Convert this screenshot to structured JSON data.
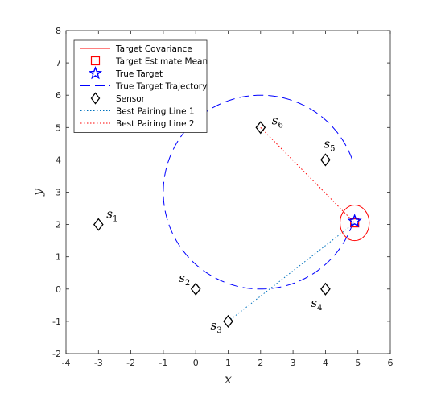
{
  "chart_data": {
    "type": "scatter",
    "title": "",
    "xlabel": "x",
    "ylabel": "y",
    "xlim": [
      -4,
      6
    ],
    "ylim": [
      -2,
      8
    ],
    "xticks": [
      -4,
      -3,
      -2,
      -1,
      0,
      1,
      2,
      3,
      4,
      5,
      6
    ],
    "yticks": [
      -2,
      -1,
      0,
      1,
      2,
      3,
      4,
      5,
      6,
      7,
      8
    ],
    "grid": false,
    "legend_position": "top-left",
    "legend": [
      {
        "label": "Target Covariance",
        "style": "red-solid-line"
      },
      {
        "label": "Target Estimate Mean",
        "style": "red-square"
      },
      {
        "label": "True Target",
        "style": "blue-star"
      },
      {
        "label": "True Target Trajectory",
        "style": "blue-dashed-line"
      },
      {
        "label": "Sensor",
        "style": "black-diamond"
      },
      {
        "label": "Best Pairing Line 1",
        "style": "blue-dotted-line"
      },
      {
        "label": "Best Pairing Line 2",
        "style": "red-dotted-line"
      }
    ],
    "sensors": [
      {
        "name": "s",
        "sub": "1",
        "x": -3,
        "y": 2
      },
      {
        "name": "s",
        "sub": "2",
        "x": 0,
        "y": 0
      },
      {
        "name": "s",
        "sub": "3",
        "x": 1,
        "y": -1
      },
      {
        "name": "s",
        "sub": "4",
        "x": 4,
        "y": 0
      },
      {
        "name": "s",
        "sub": "5",
        "x": 4,
        "y": 4
      },
      {
        "name": "s",
        "sub": "6",
        "x": 2,
        "y": 5
      }
    ],
    "trajectory": {
      "type": "circle",
      "center": [
        2,
        3
      ],
      "radius": 3,
      "gap_angles_deg": [
        -20,
        20
      ]
    },
    "true_target": {
      "x": 4.9,
      "y": 2.1
    },
    "estimate_mean": {
      "x": 4.9,
      "y": 2.05
    },
    "covariance_ellipse": {
      "center": [
        4.9,
        2.05
      ],
      "rx": 0.45,
      "ry": 0.55
    },
    "pairing_line_1": {
      "from": [
        1,
        -1
      ],
      "to": [
        4.9,
        2.05
      ]
    },
    "pairing_line_2": {
      "from": [
        2,
        5
      ],
      "to": [
        4.9,
        2.05
      ]
    },
    "colors": {
      "covariance": "#ff0000",
      "estimate": "#ff0000",
      "true_target": "#0000ff",
      "trajectory": "#0000ff",
      "sensor": "#000000",
      "pairing_1": "#0072bd",
      "pairing_2": "#ff0000"
    }
  }
}
